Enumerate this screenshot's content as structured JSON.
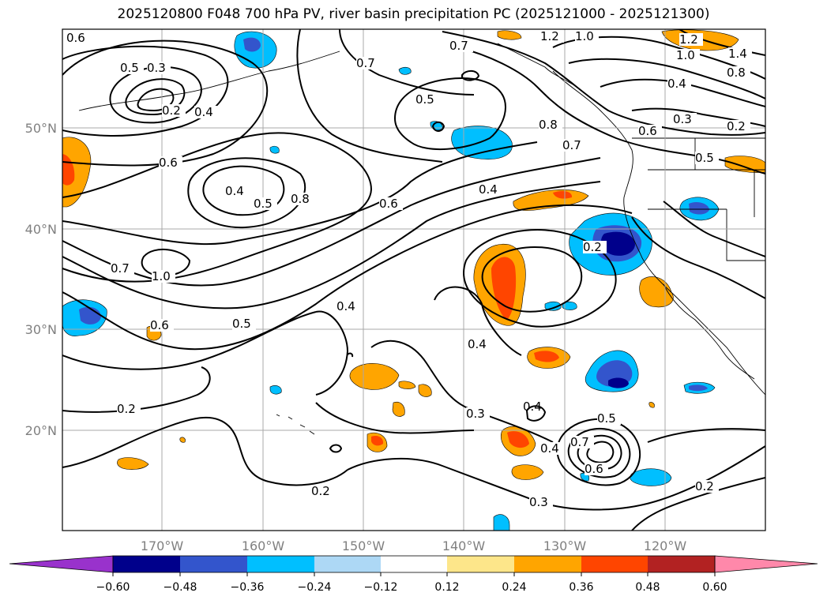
{
  "title": "2025120800 F048 700 hPa PV, river basin precipitation PC (2025121000 - 2025121300)",
  "map": {
    "lat_labels": [
      "50°N",
      "40°N",
      "30°N",
      "20°N"
    ],
    "lon_labels": [
      "170°W",
      "160°W",
      "150°W",
      "140°W",
      "130°W",
      "120°W"
    ],
    "contour_labels": [
      "0.6",
      "0.5",
      "0.3",
      "0.2",
      "0.4",
      "0.6",
      "0.4",
      "0.5",
      "0.8",
      "0.7",
      "0.5",
      "0.7",
      "1.2",
      "1.0",
      "1.2",
      "1.0",
      "1.4",
      "0.4",
      "0.8",
      "0.3",
      "0.2",
      "0.6",
      "0.5",
      "0.8",
      "0.7",
      "0.6",
      "0.4",
      "0.7",
      "1.0",
      "0.6",
      "0.5",
      "0.4",
      "0.4",
      "0.3",
      "0.2",
      "0.2",
      "0.2",
      "0.4",
      "0.5",
      "0.7",
      "0.6",
      "0.3",
      "0.2",
      "0.4"
    ],
    "colors": {
      "neg_darkest": "#9932cc",
      "neg_0": "#00008b",
      "neg_1": "#3355cc",
      "neg_2": "#00bfff",
      "neg_3": "#add8f5",
      "pos_1": "#fde68a",
      "pos_2": "#ffa500",
      "pos_3": "#ff4500",
      "pos_4": "#b22222",
      "pos_5": "#ff88aa"
    }
  },
  "colorbar": {
    "ticks": [
      "−0.60",
      "−0.48",
      "−0.36",
      "−0.24",
      "−0.12",
      "0.12",
      "0.24",
      "0.36",
      "0.48",
      "0.60"
    ],
    "bins": [
      {
        "color": "#9932cc"
      },
      {
        "color": "#00008b"
      },
      {
        "color": "#3355cc"
      },
      {
        "color": "#00bfff"
      },
      {
        "color": "#add8f5"
      },
      {
        "color": "#ffffff"
      },
      {
        "color": "#fde68a"
      },
      {
        "color": "#ffa500"
      },
      {
        "color": "#ff4500"
      },
      {
        "color": "#b22222"
      },
      {
        "color": "#ff88aa"
      }
    ]
  }
}
